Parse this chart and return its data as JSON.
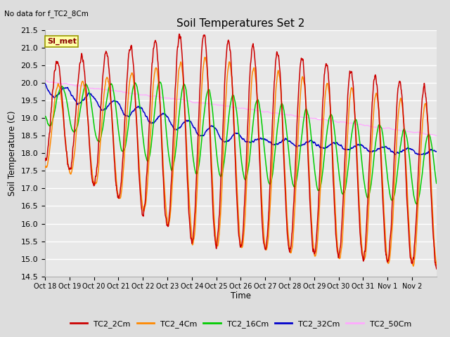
{
  "title": "Soil Temperatures Set 2",
  "no_data_label": "No data for f_TC2_8Cm",
  "si_met_label": "SI_met",
  "ylabel": "Soil Temperature (C)",
  "xlabel": "Time",
  "ylim": [
    14.5,
    21.5
  ],
  "series_colors": {
    "TC2_2Cm": "#cc0000",
    "TC2_4Cm": "#ff8800",
    "TC2_16Cm": "#00cc00",
    "TC2_32Cm": "#0000cc",
    "TC2_50Cm": "#ffaaff"
  },
  "x_tick_labels": [
    "Oct 18",
    "Oct 19",
    "Oct 20",
    "Oct 21",
    "Oct 22",
    "Oct 23",
    "Oct 24",
    "Oct 25",
    "Oct 26",
    "Oct 27",
    "Oct 28",
    "Oct 29",
    "Oct 30",
    "Oct 31",
    "Nov 1",
    "Nov 2"
  ],
  "figsize": [
    6.4,
    4.8
  ],
  "dpi": 100
}
